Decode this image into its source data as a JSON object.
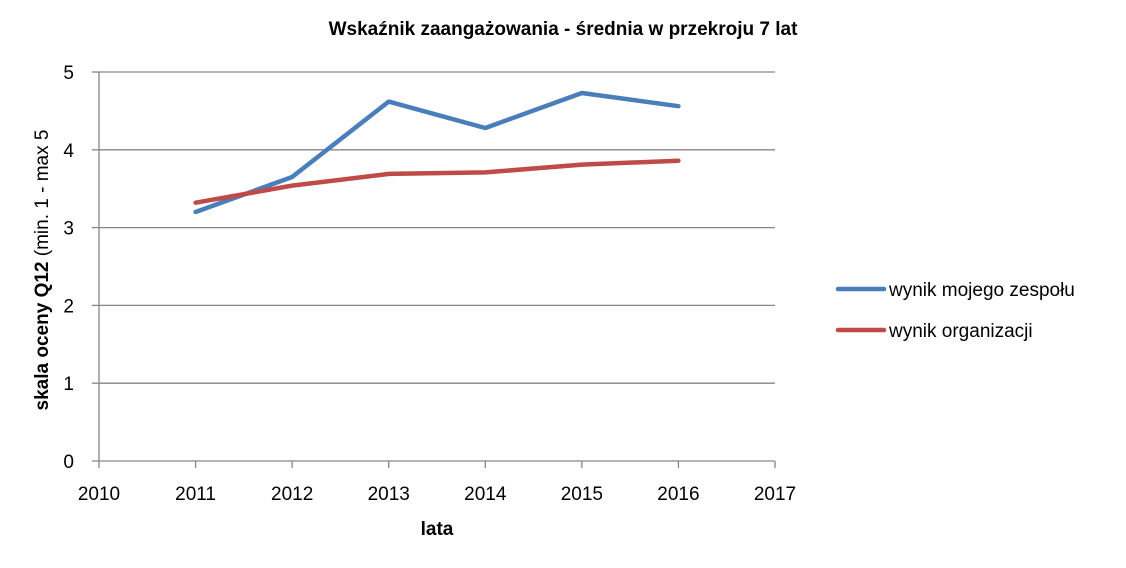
{
  "chart_data": {
    "type": "line",
    "title": "Wskaźnik zaangażowania - średnia w przekroju 7 lat",
    "xlabel": "lata",
    "ylabel_bold": "skala oceny Q12",
    "ylabel_normal": " (min. 1 - max 5",
    "xlim": [
      2010,
      2017
    ],
    "ylim": [
      0,
      5
    ],
    "x_ticks": [
      "2010",
      "2011",
      "2012",
      "2013",
      "2014",
      "2015",
      "2016",
      "2017"
    ],
    "y_ticks": [
      "0",
      "1",
      "2",
      "3",
      "4",
      "5"
    ],
    "grid": true,
    "legend_position": "right",
    "x": [
      2011,
      2012,
      2013,
      2014,
      2015,
      2016
    ],
    "series": [
      {
        "name": "wynik mojego zespołu",
        "color": "#4a7ebb",
        "values": [
          3.2,
          3.65,
          4.62,
          4.28,
          4.73,
          4.56
        ]
      },
      {
        "name": "wynik organizacji",
        "color": "#be4b48",
        "values": [
          3.32,
          3.54,
          3.69,
          3.71,
          3.81,
          3.86
        ]
      }
    ]
  }
}
